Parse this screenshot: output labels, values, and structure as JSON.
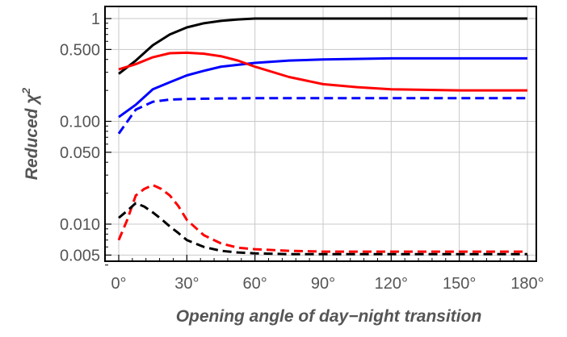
{
  "chart_data": {
    "type": "line",
    "xlabel": "Opening angle of day−night transition",
    "ylabel_main": "Reduced ",
    "ylabel_symbol": "χ",
    "ylabel_sup": "2",
    "x_scale": "linear",
    "y_scale": "log",
    "xlim": [
      0,
      180
    ],
    "ylim": [
      0.0032,
      1.5
    ],
    "x_ticks": [
      {
        "value": 0,
        "label": "0°"
      },
      {
        "value": 30,
        "label": "30°"
      },
      {
        "value": 60,
        "label": "60°"
      },
      {
        "value": 90,
        "label": "90°"
      },
      {
        "value": 120,
        "label": "120°"
      },
      {
        "value": 150,
        "label": "150°"
      },
      {
        "value": 180,
        "label": "180°"
      }
    ],
    "y_ticks": [
      {
        "value": 1,
        "label": "1"
      },
      {
        "value": 0.5,
        "label": "0.500"
      },
      {
        "value": 0.1,
        "label": "0.100"
      },
      {
        "value": 0.05,
        "label": "0.050"
      },
      {
        "value": 0.01,
        "label": "0.010"
      },
      {
        "value": 0.005,
        "label": "0.005"
      }
    ],
    "grid": true,
    "series": [
      {
        "color": "#000000",
        "dash": "solid",
        "x": [
          0,
          7.5,
          15,
          22.5,
          30,
          37.5,
          45,
          52.5,
          60,
          75,
          90,
          120,
          150,
          180
        ],
        "y": [
          0.29,
          0.39,
          0.55,
          0.7,
          0.82,
          0.9,
          0.95,
          0.98,
          1.0,
          1.0,
          1.0,
          1.0,
          1.0,
          1.0
        ]
      },
      {
        "color": "#0000ff",
        "dash": "solid",
        "x": [
          0,
          7.5,
          15,
          22.5,
          30,
          37.5,
          45,
          60,
          75,
          90,
          120,
          150,
          180
        ],
        "y": [
          0.11,
          0.145,
          0.205,
          0.24,
          0.28,
          0.31,
          0.34,
          0.37,
          0.39,
          0.4,
          0.41,
          0.41,
          0.41
        ]
      },
      {
        "color": "#ff0000",
        "dash": "solid",
        "x": [
          0,
          7.5,
          15,
          22.5,
          30,
          37.5,
          45,
          52.5,
          60,
          75,
          90,
          105,
          120,
          150,
          180
        ],
        "y": [
          0.32,
          0.36,
          0.42,
          0.46,
          0.465,
          0.455,
          0.43,
          0.39,
          0.34,
          0.27,
          0.23,
          0.215,
          0.205,
          0.2,
          0.2
        ]
      },
      {
        "color": "#0000ff",
        "dash": "dashed",
        "x": [
          0,
          7.5,
          15,
          22.5,
          30,
          45,
          60,
          90,
          120,
          150,
          180
        ],
        "y": [
          0.076,
          0.13,
          0.155,
          0.163,
          0.165,
          0.167,
          0.168,
          0.168,
          0.168,
          0.168,
          0.168
        ]
      },
      {
        "color": "#ff0000",
        "dash": "dashed",
        "x": [
          0,
          3.75,
          7.5,
          11.25,
          15,
          18.75,
          22.5,
          26.25,
          30,
          37.5,
          45,
          52.5,
          60,
          75,
          90,
          120,
          150,
          180
        ],
        "y": [
          0.007,
          0.011,
          0.019,
          0.022,
          0.024,
          0.022,
          0.019,
          0.015,
          0.011,
          0.0078,
          0.0065,
          0.0059,
          0.0057,
          0.0055,
          0.0054,
          0.0054,
          0.0054,
          0.0054
        ]
      },
      {
        "color": "#000000",
        "dash": "dashed",
        "x": [
          0,
          3.75,
          7.5,
          11.25,
          15,
          18.75,
          22.5,
          26.25,
          30,
          37.5,
          45,
          52.5,
          60,
          75,
          90,
          120,
          150,
          180
        ],
        "y": [
          0.0115,
          0.0135,
          0.016,
          0.0148,
          0.013,
          0.0112,
          0.0095,
          0.0082,
          0.007,
          0.006,
          0.0055,
          0.0053,
          0.0052,
          0.0051,
          0.0051,
          0.0051,
          0.0051,
          0.0051
        ]
      }
    ]
  }
}
